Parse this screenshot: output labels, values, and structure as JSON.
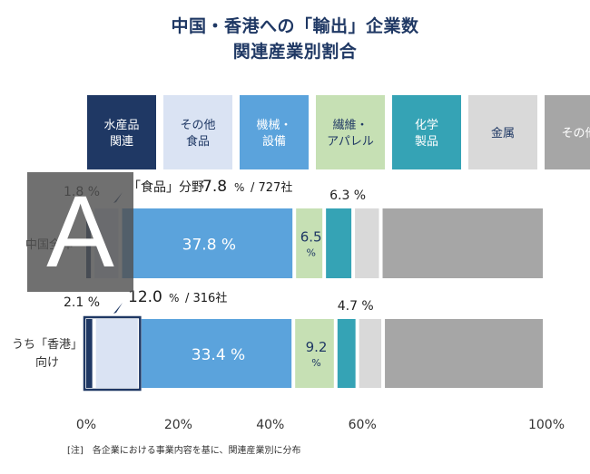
{
  "title_line1": "中国・香港への「輸出」企業数",
  "title_line2": "関連産業別割合",
  "note": "[注]　各企業における事業内容を基に、関連産業別に分布",
  "overlay_letter": "A",
  "colors": {
    "food": "#1f3864",
    "other_food": "#dae3f3",
    "machinery": "#5ba3dc",
    "textile": "#c6e0b4",
    "chemical": "#35a3b5",
    "metal": "#d9d9d9",
    "other": "#a6a6a6"
  },
  "chart_data": {
    "type": "bar",
    "orientation": "horizontal",
    "stacked": true,
    "categories": [
      "中国全体",
      "うち「香港」向け"
    ],
    "legend": [
      {
        "key": "food",
        "label_lines": [
          "水産品",
          "関連"
        ]
      },
      {
        "key": "other_food",
        "label_lines": [
          "その他",
          "食品"
        ]
      },
      {
        "key": "machinery",
        "label_lines": [
          "機械・",
          "設備"
        ]
      },
      {
        "key": "textile",
        "label_lines": [
          "繊維・",
          "アパレル"
        ]
      },
      {
        "key": "chemical",
        "label_lines": [
          "化学",
          "製品"
        ]
      },
      {
        "key": "metal",
        "label_lines": [
          "金属"
        ]
      },
      {
        "key": "other",
        "label_lines": [
          "その他"
        ]
      }
    ],
    "series": [
      {
        "key": "food",
        "values": [
          1.8,
          2.1
        ]
      },
      {
        "key": "other_food",
        "values": [
          6.0,
          9.9
        ]
      },
      {
        "key": "machinery",
        "values": [
          37.8,
          33.4
        ]
      },
      {
        "key": "textile",
        "values": [
          6.5,
          9.2
        ]
      },
      {
        "key": "chemical",
        "values": [
          6.3,
          4.7
        ]
      },
      {
        "key": "metal",
        "values": [
          6.0,
          5.6
        ]
      },
      {
        "key": "other",
        "values": [
          35.6,
          35.1
        ]
      }
    ],
    "data_labels": [
      {
        "machinery": "37.8 %",
        "textile": [
          "6.5",
          "%"
        ],
        "chemical": "6.3 %",
        "food": "1.8 %"
      },
      {
        "machinery": "33.4 %",
        "textile": [
          "9.2",
          "%"
        ],
        "chemical": "4.7 %",
        "food": "2.1 %"
      }
    ],
    "food_totals": [
      {
        "prefix": "「食品」分野",
        "value": "7.8",
        "unit": "%",
        "suffix": "/ 727社"
      },
      {
        "prefix": "",
        "value": "12.0",
        "unit": "%",
        "suffix": "/ 316社"
      }
    ],
    "x_ticks": [
      "0%",
      "20%",
      "40%",
      "60%",
      "100%"
    ],
    "x_tick_values": [
      0,
      20,
      40,
      60,
      100
    ],
    "xlim": [
      0,
      100
    ]
  }
}
